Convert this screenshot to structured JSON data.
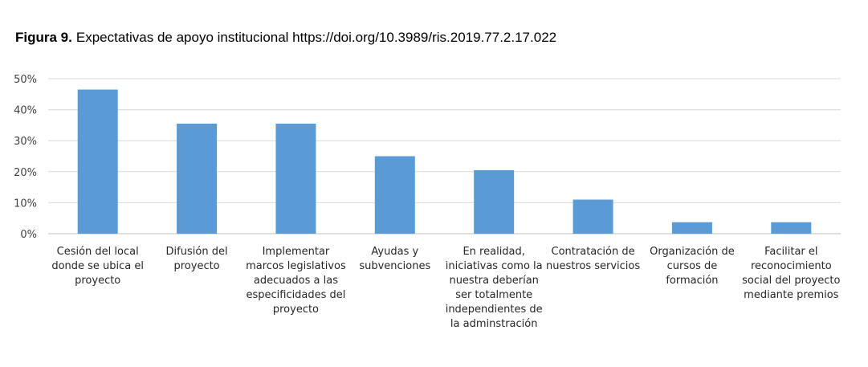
{
  "chart_data": {
    "type": "bar",
    "title_label": "Figura 9.",
    "title": "Expectativas de apoyo institucional https://doi.org/10.3989/ris.2019.77.2.17.022",
    "xlabel": "",
    "ylabel": "",
    "ylim": [
      0,
      0.5
    ],
    "yticks": [
      "0%",
      "10%",
      "20%",
      "30%",
      "40%",
      "50%"
    ],
    "grid": true,
    "bar_color": "#5b9bd5",
    "categories": [
      [
        "Cesión del local",
        "donde se ubica el",
        "proyecto"
      ],
      [
        "Difusión del",
        "proyecto"
      ],
      [
        "Implementar",
        "marcos legislativos",
        "adecuados a las",
        "especificidades del",
        "proyecto"
      ],
      [
        "Ayudas y",
        "subvenciones"
      ],
      [
        "En realidad,",
        "iniciativas como la",
        "nuestra deberían",
        "ser totalmente",
        "independientes de",
        "la adminstración"
      ],
      [
        "Contratación de",
        "nuestros servicios"
      ],
      [
        "Organización de",
        "cursos de",
        "formación"
      ],
      [
        "Facilitar el",
        "reconocimiento",
        "social del proyecto",
        "mediante premios"
      ]
    ],
    "values": [
      0.465,
      0.355,
      0.355,
      0.25,
      0.205,
      0.11,
      0.037,
      0.037
    ]
  }
}
